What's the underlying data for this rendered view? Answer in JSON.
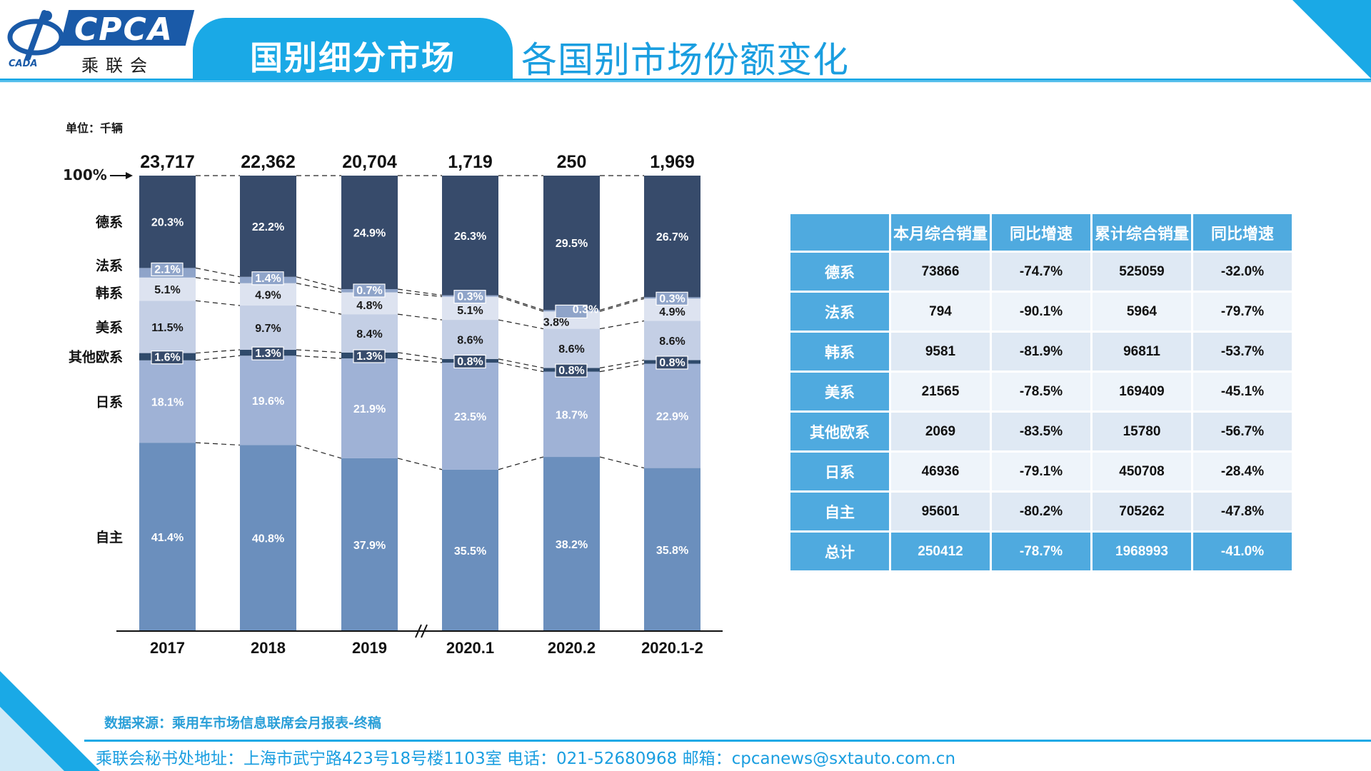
{
  "header": {
    "logo_text": "CPCA",
    "logo_cn": "乘联会",
    "logo_sub": "CADA",
    "section_title": "国别细分市场",
    "page_title": "各国别市场份额变化"
  },
  "colors": {
    "accent": "#1aa9e6",
    "table_header": "#4faadf",
    "series": [
      "#6b8fbd",
      "#9fb2d6",
      "#2f4a6b",
      "#c4cfe5",
      "#dde3f0",
      "#8fa4c9",
      "#374b6b"
    ]
  },
  "chart_data": {
    "type": "bar",
    "stacked": true,
    "normalized": true,
    "unit_label": "单位：千辆",
    "top_label": "100%",
    "categories": [
      "2017",
      "2018",
      "2019",
      "2020.1",
      "2020.2",
      "2020.1-2"
    ],
    "totals": [
      "23,717",
      "22,362",
      "20,704",
      "1,719",
      "250",
      "1,969"
    ],
    "series": [
      {
        "name": "自主",
        "values": [
          41.4,
          40.8,
          37.9,
          35.5,
          38.2,
          35.8
        ]
      },
      {
        "name": "日系",
        "values": [
          18.1,
          19.6,
          21.9,
          23.5,
          18.7,
          22.9
        ]
      },
      {
        "name": "其他欧系",
        "values": [
          1.6,
          1.3,
          1.3,
          0.8,
          0.8,
          0.8
        ]
      },
      {
        "name": "美系",
        "values": [
          11.5,
          9.7,
          8.4,
          8.6,
          8.6,
          8.6
        ]
      },
      {
        "name": "韩系",
        "values": [
          5.1,
          4.9,
          4.8,
          5.1,
          3.8,
          4.9
        ]
      },
      {
        "name": "法系",
        "values": [
          2.1,
          1.4,
          0.7,
          0.3,
          0.3,
          0.3
        ]
      },
      {
        "name": "德系",
        "values": [
          20.3,
          22.2,
          24.9,
          26.3,
          29.5,
          26.7
        ]
      }
    ],
    "axis_break_after": "2019"
  },
  "table": {
    "headers": [
      "",
      "本月综合销量",
      "同比增速",
      "累计综合销量",
      "同比增速"
    ],
    "rows": [
      [
        "德系",
        "73866",
        "-74.7%",
        "525059",
        "-32.0%"
      ],
      [
        "法系",
        "794",
        "-90.1%",
        "5964",
        "-79.7%"
      ],
      [
        "韩系",
        "9581",
        "-81.9%",
        "96811",
        "-53.7%"
      ],
      [
        "美系",
        "21565",
        "-78.5%",
        "169409",
        "-45.1%"
      ],
      [
        "其他欧系",
        "2069",
        "-83.5%",
        "15780",
        "-56.7%"
      ],
      [
        "日系",
        "46936",
        "-79.1%",
        "450708",
        "-28.4%"
      ],
      [
        "自主",
        "95601",
        "-80.2%",
        "705262",
        "-47.8%"
      ]
    ],
    "total_row": [
      "总计",
      "250412",
      "-78.7%",
      "1968993",
      "-41.0%"
    ]
  },
  "footer": {
    "source": "数据来源：乘用车市场信息联席会月报表-终稿",
    "contact": "乘联会秘书处地址：上海市武宁路423号18号楼1103室  电话：021-52680968  邮箱：cpcanews@sxtauto.com.cn"
  }
}
